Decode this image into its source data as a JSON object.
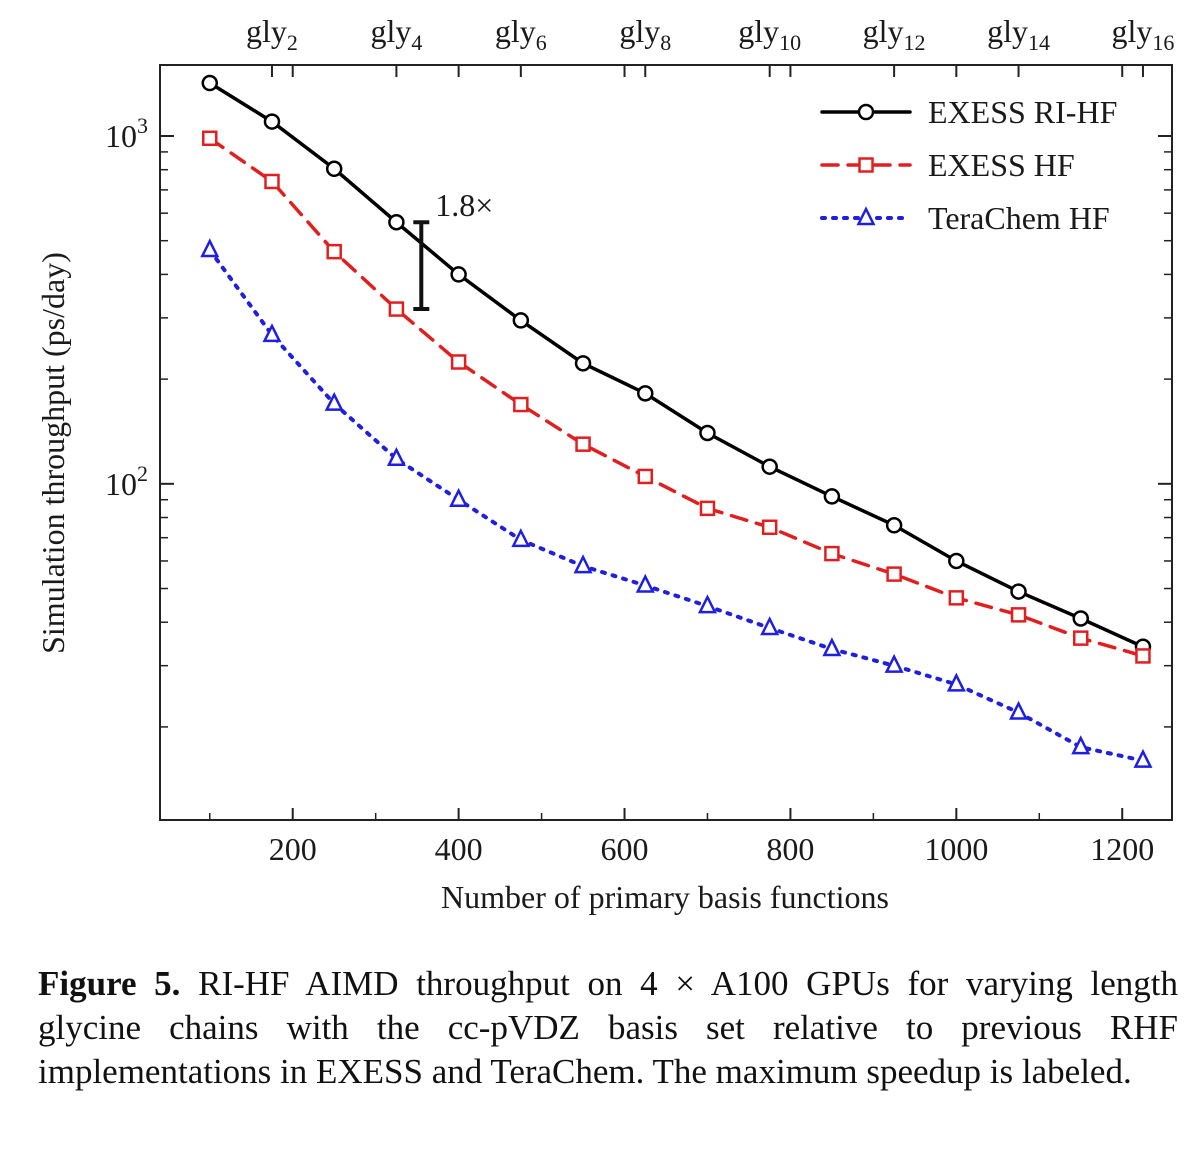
{
  "chart_data": {
    "type": "line",
    "xlabel": "Number of primary basis functions",
    "ylabel": "Simulation throughput (ps/day)",
    "xlim": [
      40,
      1260
    ],
    "ylim": [
      10.8,
      1600
    ],
    "yscale": "log",
    "x_ticks": [
      200,
      400,
      600,
      800,
      1000,
      1200
    ],
    "y_ticks": [
      {
        "value": 100,
        "base": "10",
        "exp": "2"
      },
      {
        "value": 1000,
        "base": "10",
        "exp": "3"
      }
    ],
    "top_axis": {
      "ticks": [
        {
          "x": 175,
          "base": "gly",
          "sub": "2"
        },
        {
          "x": 325,
          "base": "gly",
          "sub": "4"
        },
        {
          "x": 475,
          "base": "gly",
          "sub": "6"
        },
        {
          "x": 625,
          "base": "gly",
          "sub": "8"
        },
        {
          "x": 775,
          "base": "gly",
          "sub": "10"
        },
        {
          "x": 925,
          "base": "gly",
          "sub": "12"
        },
        {
          "x": 1075,
          "base": "gly",
          "sub": "14"
        },
        {
          "x": 1225,
          "base": "gly",
          "sub": "16"
        }
      ]
    },
    "x": [
      100,
      175,
      250,
      325,
      400,
      475,
      550,
      625,
      700,
      775,
      850,
      925,
      1000,
      1075,
      1150,
      1225
    ],
    "series": [
      {
        "name": "EXESS RI-HF",
        "color": "#000000",
        "linestyle": "solid",
        "marker": "circle",
        "values": [
          1420,
          1100,
          805,
          565,
          400,
          295,
          222,
          182,
          140,
          112,
          92,
          76,
          60,
          49,
          41,
          34
        ]
      },
      {
        "name": "EXESS HF",
        "color": "#e02020",
        "linestyle": "dashed",
        "marker": "square",
        "values": [
          985,
          740,
          465,
          318,
          224,
          169,
          130,
          105,
          85,
          75,
          63,
          55,
          47,
          42,
          36,
          32
        ]
      },
      {
        "name": "TeraChem HF",
        "color": "#1f1fe0",
        "linestyle": "dotted",
        "marker": "triangle",
        "values": [
          470,
          268,
          170,
          118,
          90,
          69,
          58,
          51,
          44.5,
          38.5,
          33.5,
          30,
          26.5,
          22,
          17.5,
          16
        ]
      }
    ],
    "legend_position": "top-right",
    "annotation": {
      "text": "1.8×",
      "x": 355,
      "y_low": 318,
      "y_high": 565
    }
  },
  "caption": {
    "label": "Figure 5.",
    "text": "RI-HF AIMD throughput on 4 × A100 GPUs for varying length glycine chains with the cc-pVDZ basis set relative to previous RHF implementations in EXESS and TeraChem. The maximum speedup is labeled."
  }
}
